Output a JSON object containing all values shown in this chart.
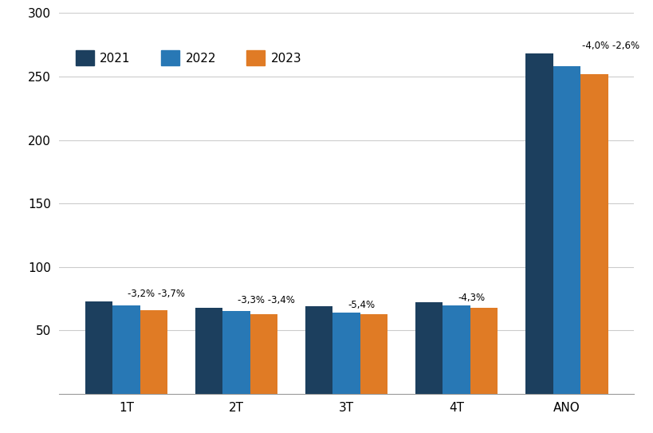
{
  "categories": [
    "1T",
    "2T",
    "3T",
    "4T",
    "ANO"
  ],
  "series": {
    "2021": [
      73,
      68,
      69,
      72,
      268
    ],
    "2022": [
      70,
      65.5,
      64,
      69.5,
      258
    ],
    "2023": [
      66,
      63,
      63,
      68,
      252
    ]
  },
  "colors": {
    "2021": "#1c3f5e",
    "2022": "#2878b5",
    "2023": "#e07b25"
  },
  "labels": {
    "1T": [
      "-3,2%",
      "-3,7%"
    ],
    "2T": [
      "-3,3%",
      "-3,4%"
    ],
    "3T": [
      "-5,4%",
      ""
    ],
    "4T": [
      "-4,3%",
      ""
    ],
    "ANO": [
      "-4,0%",
      "-2,6%"
    ]
  },
  "ylim": [
    0,
    300
  ],
  "yticks": [
    50,
    100,
    150,
    200,
    250,
    300
  ],
  "legend_labels": [
    "2021",
    "2022",
    "2023"
  ],
  "bar_width": 0.25,
  "background_color": "#ffffff",
  "grid_color": "#cccccc",
  "label_fontsize": 8.5,
  "tick_fontsize": 11
}
